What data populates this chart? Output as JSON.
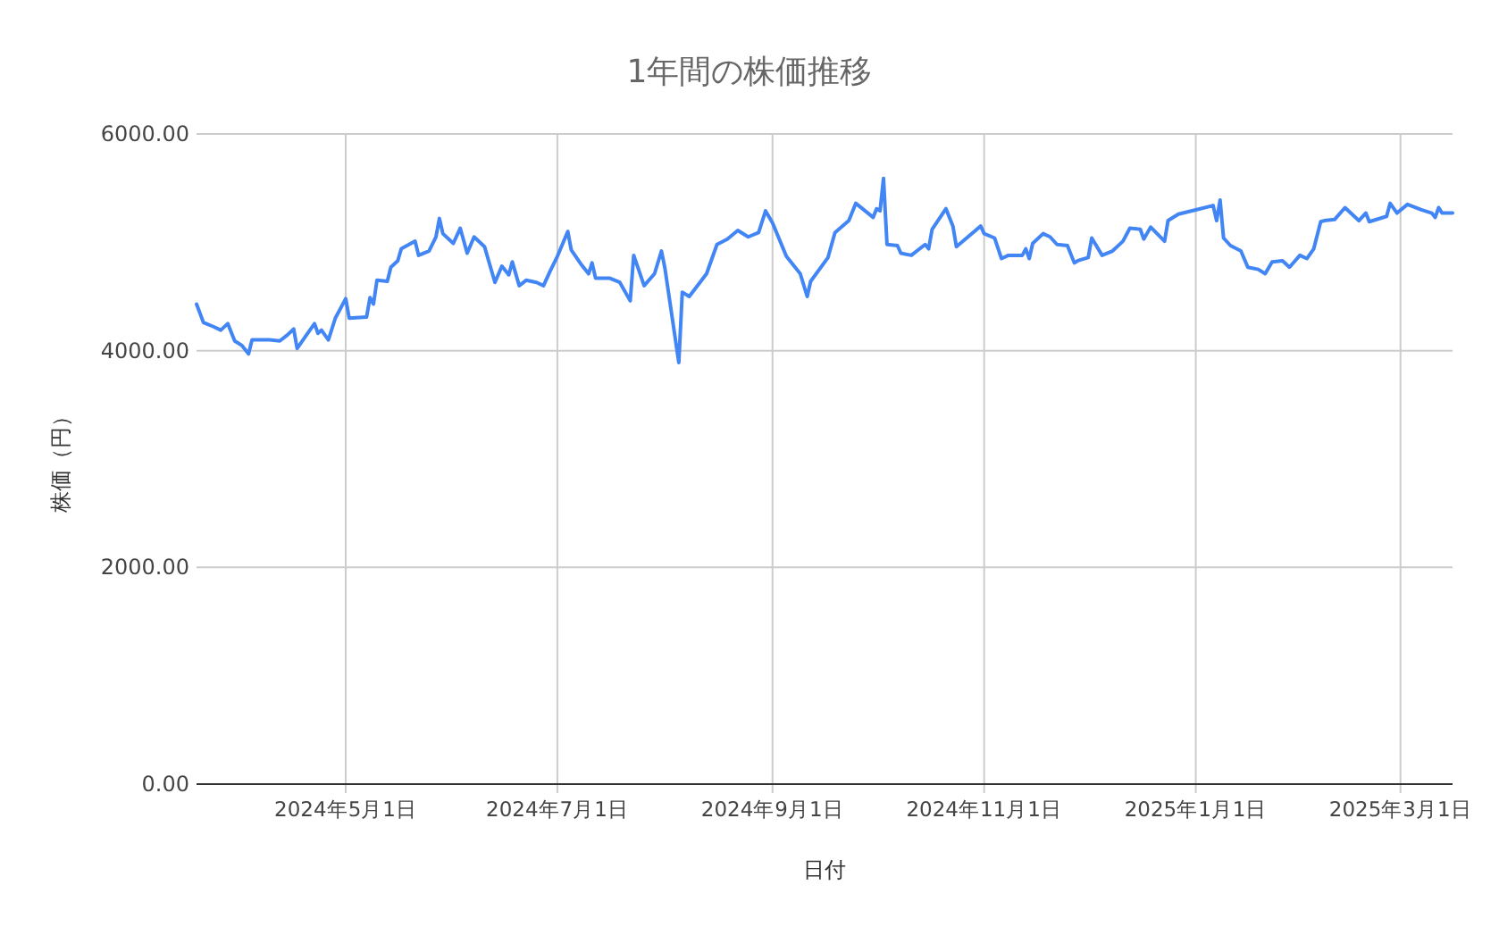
{
  "chart_data": {
    "type": "line",
    "title": "1年間の株価推移",
    "xlabel": "日付",
    "ylabel": "株価（円）",
    "grid": true,
    "marker": "none",
    "line_style": "solid",
    "xlim": [
      "2024-03-19",
      "2025-03-16"
    ],
    "xticks": [
      {
        "value": "2024-05-01",
        "label": "2024年5月1日"
      },
      {
        "value": "2024-07-01",
        "label": "2024年7月1日"
      },
      {
        "value": "2024-09-01",
        "label": "2024年9月1日"
      },
      {
        "value": "2024-11-01",
        "label": "2024年11月1日"
      },
      {
        "value": "2025-01-01",
        "label": "2025年1月1日"
      },
      {
        "value": "2025-03-01",
        "label": "2025年3月1日"
      }
    ],
    "ylim": [
      0,
      6000
    ],
    "yticks": [
      {
        "value": 0,
        "label": "0.00"
      },
      {
        "value": 2000,
        "label": "2000.00"
      },
      {
        "value": 4000,
        "label": "4000.00"
      },
      {
        "value": 6000,
        "label": "6000.00"
      }
    ],
    "x": [
      "2024-03-19",
      "2024-03-21",
      "2024-03-24",
      "2024-03-26",
      "2024-03-28",
      "2024-03-30",
      "2024-04-01",
      "2024-04-03",
      "2024-04-04",
      "2024-04-09",
      "2024-04-12",
      "2024-04-14",
      "2024-04-16",
      "2024-04-17",
      "2024-04-20",
      "2024-04-22",
      "2024-04-23",
      "2024-04-24",
      "2024-04-26",
      "2024-04-28",
      "2024-05-01",
      "2024-05-02",
      "2024-05-07",
      "2024-05-08",
      "2024-05-09",
      "2024-05-10",
      "2024-05-13",
      "2024-05-14",
      "2024-05-16",
      "2024-05-17",
      "2024-05-21",
      "2024-05-22",
      "2024-05-25",
      "2024-05-27",
      "2024-05-28",
      "2024-05-29",
      "2024-06-01",
      "2024-06-03",
      "2024-06-05",
      "2024-06-07",
      "2024-06-10",
      "2024-06-13",
      "2024-06-15",
      "2024-06-17",
      "2024-06-18",
      "2024-06-20",
      "2024-06-22",
      "2024-06-25",
      "2024-06-27",
      "2024-06-29",
      "2024-07-01",
      "2024-07-04",
      "2024-07-05",
      "2024-07-08",
      "2024-07-10",
      "2024-07-11",
      "2024-07-12",
      "2024-07-16",
      "2024-07-19",
      "2024-07-22",
      "2024-07-23",
      "2024-07-26",
      "2024-07-29",
      "2024-07-31",
      "2024-08-01",
      "2024-08-05",
      "2024-08-06",
      "2024-08-08",
      "2024-08-13",
      "2024-08-16",
      "2024-08-19",
      "2024-08-22",
      "2024-08-25",
      "2024-08-28",
      "2024-08-30",
      "2024-09-01",
      "2024-09-05",
      "2024-09-09",
      "2024-09-11",
      "2024-09-12",
      "2024-09-17",
      "2024-09-19",
      "2024-09-23",
      "2024-09-25",
      "2024-09-30",
      "2024-10-01",
      "2024-10-02",
      "2024-10-03",
      "2024-10-04",
      "2024-10-07",
      "2024-10-08",
      "2024-10-11",
      "2024-10-15",
      "2024-10-16",
      "2024-10-17",
      "2024-10-21",
      "2024-10-23",
      "2024-10-24",
      "2024-10-31",
      "2024-11-01",
      "2024-11-04",
      "2024-11-06",
      "2024-11-08",
      "2024-11-12",
      "2024-11-13",
      "2024-11-14",
      "2024-11-15",
      "2024-11-18",
      "2024-11-20",
      "2024-11-22",
      "2024-11-25",
      "2024-11-27",
      "2024-11-28",
      "2024-12-01",
      "2024-12-02",
      "2024-12-05",
      "2024-12-08",
      "2024-12-11",
      "2024-12-13",
      "2024-12-16",
      "2024-12-17",
      "2024-12-19",
      "2024-12-23",
      "2024-12-24",
      "2024-12-27",
      "2025-01-01",
      "2025-01-06",
      "2025-01-07",
      "2025-01-08",
      "2025-01-09",
      "2025-01-11",
      "2025-01-14",
      "2025-01-16",
      "2025-01-19",
      "2025-01-21",
      "2025-01-23",
      "2025-01-26",
      "2025-01-28",
      "2025-01-31",
      "2025-02-02",
      "2025-02-04",
      "2025-02-06",
      "2025-02-07",
      "2025-02-10",
      "2025-02-13",
      "2025-02-17",
      "2025-02-19",
      "2025-02-20",
      "2025-02-25",
      "2025-02-26",
      "2025-02-28",
      "2025-03-03",
      "2025-03-07",
      "2025-03-10",
      "2025-03-11",
      "2025-03-12",
      "2025-03-13",
      "2025-03-16"
    ],
    "series": [
      {
        "color": "#4285f4",
        "values": [
          4430,
          4260,
          4220,
          4190,
          4250,
          4090,
          4050,
          3970,
          4100,
          4100,
          4090,
          4140,
          4200,
          4020,
          4160,
          4250,
          4160,
          4190,
          4100,
          4300,
          4480,
          4300,
          4310,
          4490,
          4430,
          4650,
          4640,
          4770,
          4830,
          4940,
          5010,
          4880,
          4920,
          5050,
          5220,
          5080,
          4990,
          5130,
          4900,
          5050,
          4960,
          4630,
          4780,
          4700,
          4820,
          4600,
          4650,
          4630,
          4600,
          4740,
          4870,
          5100,
          4930,
          4790,
          4710,
          4810,
          4670,
          4670,
          4630,
          4460,
          4880,
          4600,
          4710,
          4920,
          4760,
          3890,
          4540,
          4500,
          4710,
          4980,
          5030,
          5110,
          5050,
          5090,
          5290,
          5180,
          4870,
          4710,
          4500,
          4640,
          4860,
          5090,
          5200,
          5360,
          5230,
          5310,
          5290,
          5590,
          4980,
          4970,
          4900,
          4880,
          4980,
          4940,
          5120,
          5310,
          5150,
          4960,
          5150,
          5080,
          5040,
          4850,
          4880,
          4880,
          4940,
          4850,
          4990,
          5080,
          5050,
          4980,
          4970,
          4810,
          4830,
          4860,
          5040,
          4880,
          4920,
          5010,
          5130,
          5120,
          5030,
          5140,
          5010,
          5200,
          5260,
          5300,
          5340,
          5200,
          5390,
          5040,
          4970,
          4920,
          4770,
          4750,
          4710,
          4820,
          4830,
          4770,
          4880,
          4850,
          4940,
          5190,
          5200,
          5210,
          5320,
          5200,
          5270,
          5190,
          5240,
          5360,
          5270,
          5350,
          5300,
          5270,
          5230,
          5320,
          5270,
          5270
        ]
      }
    ]
  }
}
